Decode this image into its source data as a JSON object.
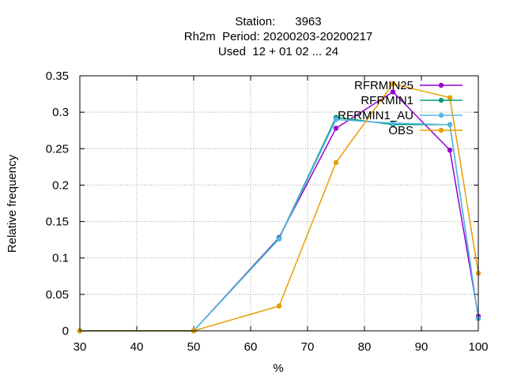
{
  "chart_data": {
    "type": "line",
    "title_lines": [
      "Station:      3963",
      "Rh2m  Period: 20200203-20200217",
      "Used  12 + 01 02 ... 24"
    ],
    "xlabel": "%",
    "ylabel": "Relative frequency",
    "xlim": [
      30,
      100
    ],
    "ylim": [
      0,
      0.35
    ],
    "x_ticks": [
      30,
      40,
      50,
      60,
      70,
      80,
      90,
      100
    ],
    "y_ticks": [
      0,
      0.05,
      0.1,
      0.15,
      0.2,
      0.25,
      0.3,
      0.35
    ],
    "x_tick_labels": [
      "30",
      "40",
      "50",
      "60",
      "70",
      "80",
      "90",
      "100"
    ],
    "y_tick_labels": [
      "0",
      "0.05",
      "0.1",
      "0.15",
      "0.2",
      "0.25",
      "0.3",
      "0.35"
    ],
    "grid": true,
    "legend_position": "top-right",
    "series": [
      {
        "name": "RFRMIN25",
        "color": "#9400d3",
        "x": [
          30,
          50,
          65,
          75,
          85,
          95,
          100
        ],
        "y": [
          0,
          0,
          0.128,
          0.278,
          0.328,
          0.248,
          0.02
        ]
      },
      {
        "name": "RFRMIN1",
        "color": "#009e73",
        "x": [
          30,
          50,
          65,
          75,
          85,
          95,
          100
        ],
        "y": [
          0,
          0,
          0.127,
          0.293,
          0.283,
          0.283,
          0.017
        ]
      },
      {
        "name": "RFRMIN1_AU",
        "color": "#56b4e9",
        "x": [
          30,
          50,
          65,
          75,
          85,
          95,
          100
        ],
        "y": [
          0,
          0,
          0.126,
          0.29,
          0.285,
          0.283,
          0.017
        ]
      },
      {
        "name": "OBS",
        "color": "#e69f00",
        "x": [
          30,
          50,
          65,
          75,
          85,
          95,
          100
        ],
        "y": [
          0,
          0,
          0.034,
          0.231,
          0.339,
          0.32,
          0.079
        ]
      }
    ]
  }
}
